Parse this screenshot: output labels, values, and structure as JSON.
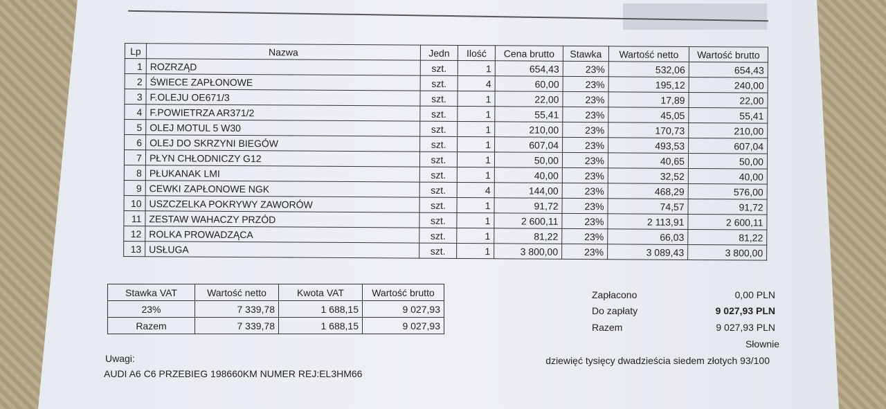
{
  "items_table": {
    "headers": [
      "Lp",
      "Nazwa",
      "Jedn",
      "Ilość",
      "Cena brutto",
      "Stawka",
      "Wartość netto",
      "Wartość brutto"
    ],
    "rows": [
      [
        "1",
        "ROZRZĄD",
        "szt.",
        "1",
        "654,43",
        "23%",
        "532,06",
        "654,43"
      ],
      [
        "2",
        "ŚWIECE ZAPŁONOWE",
        "szt.",
        "4",
        "60,00",
        "23%",
        "195,12",
        "240,00"
      ],
      [
        "3",
        "F.OLEJU OE671/3",
        "szt.",
        "1",
        "22,00",
        "23%",
        "17,89",
        "22,00"
      ],
      [
        "4",
        "F.POWIETRZA AR371/2",
        "szt.",
        "1",
        "55,41",
        "23%",
        "45,05",
        "55,41"
      ],
      [
        "5",
        "OLEJ MOTUL 5 W30",
        "szt.",
        "1",
        "210,00",
        "23%",
        "170,73",
        "210,00"
      ],
      [
        "6",
        "OLEJ DO SKRZYNI BIEGÓW",
        "szt.",
        "1",
        "607,04",
        "23%",
        "493,53",
        "607,04"
      ],
      [
        "7",
        "PŁYN CHŁODNICZY G12",
        "szt.",
        "1",
        "50,00",
        "23%",
        "40,65",
        "50,00"
      ],
      [
        "8",
        "PŁUKANAK LMI",
        "szt.",
        "1",
        "40,00",
        "23%",
        "32,52",
        "40,00"
      ],
      [
        "9",
        "CEWKI ZAPŁONOWE NGK",
        "szt.",
        "4",
        "144,00",
        "23%",
        "468,29",
        "576,00"
      ],
      [
        "10",
        "USZCZELKA POKRYWY ZAWORÓW",
        "szt.",
        "1",
        "91,72",
        "23%",
        "74,57",
        "91,72"
      ],
      [
        "11",
        "ZESTAW WAHACZY PRZÓD",
        "szt.",
        "1",
        "2 600,11",
        "23%",
        "2 113,91",
        "2 600,11"
      ],
      [
        "12",
        "ROLKA PROWADZĄCA",
        "szt.",
        "1",
        "81,22",
        "23%",
        "66,03",
        "81,22"
      ],
      [
        "13",
        "USŁUGA",
        "szt.",
        "1",
        "3 800,00",
        "23%",
        "3 089,43",
        "3 800,00"
      ]
    ]
  },
  "vat_table": {
    "headers": [
      "Stawka VAT",
      "Wartość netto",
      "Kwota VAT",
      "Wartość brutto"
    ],
    "rows": [
      [
        "23%",
        "7 339,78",
        "1 688,15",
        "9 027,93"
      ],
      [
        "Razem",
        "7 339,78",
        "1 688,15",
        "9 027,93"
      ]
    ]
  },
  "summary": {
    "paid_label": "Zapłacono",
    "paid_value": "0,00 PLN",
    "due_label": "Do zapłaty",
    "due_value": "9 027,93 PLN",
    "total_label": "Razem",
    "total_value": "9 027,93 PLN",
    "words_label": "Słownie",
    "words_value": "dziewięć tysięcy dwadzieścia siedem złotych 93/100"
  },
  "notes": {
    "label": "Uwagi:",
    "text": "AUDI A6 C6 PRZEBIEG 198660KM NUMER REJ:EL3HM66"
  }
}
